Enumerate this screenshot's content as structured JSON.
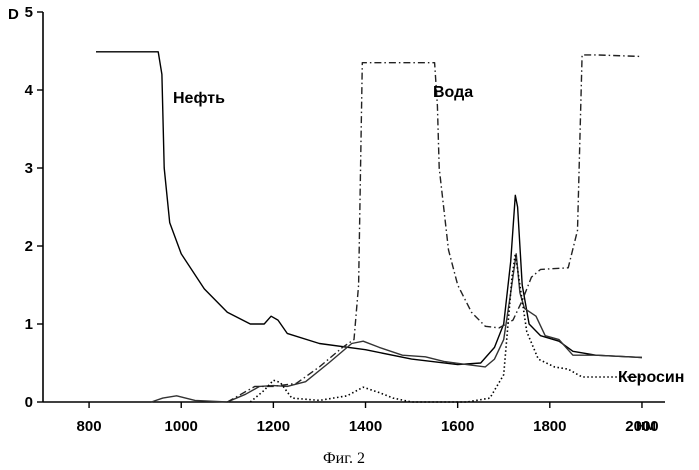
{
  "chart_data": {
    "type": "line",
    "ylabel": "D",
    "xlabel": "нм",
    "xlim": [
      700,
      2050
    ],
    "ylim": [
      0,
      5
    ],
    "xticks": [
      800,
      1000,
      1200,
      1400,
      1600,
      1800,
      2000
    ],
    "yticks": [
      0,
      1,
      2,
      3,
      4,
      5
    ],
    "grid": false,
    "legend": "none",
    "caption": "Фиг. 2",
    "series": [
      {
        "name": "Нефть",
        "style": "solid",
        "color": "#000000",
        "points": [
          [
            815,
            4.49
          ],
          [
            950,
            4.49
          ],
          [
            958,
            4.2
          ],
          [
            963,
            3.0
          ],
          [
            975,
            2.3
          ],
          [
            1000,
            1.9
          ],
          [
            1050,
            1.45
          ],
          [
            1100,
            1.15
          ],
          [
            1150,
            1.0
          ],
          [
            1180,
            1.0
          ],
          [
            1195,
            1.1
          ],
          [
            1210,
            1.05
          ],
          [
            1230,
            0.88
          ],
          [
            1300,
            0.75
          ],
          [
            1400,
            0.67
          ],
          [
            1500,
            0.55
          ],
          [
            1600,
            0.48
          ],
          [
            1650,
            0.5
          ],
          [
            1680,
            0.7
          ],
          [
            1700,
            1.0
          ],
          [
            1715,
            1.8
          ],
          [
            1725,
            2.65
          ],
          [
            1730,
            2.5
          ],
          [
            1740,
            1.5
          ],
          [
            1755,
            1.0
          ],
          [
            1780,
            0.85
          ],
          [
            1820,
            0.78
          ],
          [
            1850,
            0.65
          ],
          [
            1900,
            0.6
          ],
          [
            2000,
            0.57
          ]
        ]
      },
      {
        "name": "Вода",
        "style": "solid",
        "color": "#333333",
        "points": [
          [
            935,
            0.0
          ],
          [
            960,
            0.05
          ],
          [
            990,
            0.08
          ],
          [
            1030,
            0.02
          ],
          [
            1100,
            0.0
          ],
          [
            1140,
            0.1
          ],
          [
            1170,
            0.2
          ],
          [
            1200,
            0.21
          ],
          [
            1230,
            0.2
          ],
          [
            1270,
            0.26
          ],
          [
            1320,
            0.5
          ],
          [
            1370,
            0.75
          ],
          [
            1395,
            0.78
          ],
          [
            1430,
            0.7
          ],
          [
            1480,
            0.6
          ],
          [
            1530,
            0.58
          ],
          [
            1570,
            0.52
          ],
          [
            1620,
            0.48
          ],
          [
            1660,
            0.45
          ],
          [
            1680,
            0.55
          ],
          [
            1700,
            0.8
          ],
          [
            1715,
            1.4
          ],
          [
            1727,
            1.9
          ],
          [
            1735,
            1.4
          ],
          [
            1745,
            1.2
          ],
          [
            1770,
            1.1
          ],
          [
            1790,
            0.85
          ],
          [
            1820,
            0.8
          ],
          [
            1850,
            0.6
          ],
          [
            1900,
            0.6
          ],
          [
            2000,
            0.57
          ]
        ]
      },
      {
        "name": "",
        "style": "dashdot",
        "color": "#222222",
        "points": [
          [
            1100,
            0.0
          ],
          [
            1130,
            0.1
          ],
          [
            1160,
            0.2
          ],
          [
            1200,
            0.2
          ],
          [
            1250,
            0.24
          ],
          [
            1300,
            0.45
          ],
          [
            1350,
            0.7
          ],
          [
            1375,
            0.8
          ],
          [
            1385,
            1.5
          ],
          [
            1393,
            4.35
          ],
          [
            1550,
            4.35
          ],
          [
            1556,
            3.8
          ],
          [
            1560,
            3.0
          ],
          [
            1580,
            1.95
          ],
          [
            1600,
            1.5
          ],
          [
            1630,
            1.15
          ],
          [
            1660,
            0.97
          ],
          [
            1690,
            0.95
          ],
          [
            1720,
            1.05
          ],
          [
            1740,
            1.3
          ],
          [
            1760,
            1.6
          ],
          [
            1780,
            1.7
          ],
          [
            1840,
            1.72
          ],
          [
            1860,
            2.2
          ],
          [
            1870,
            4.45
          ],
          [
            1900,
            4.45
          ],
          [
            2000,
            4.43
          ]
        ]
      },
      {
        "name": "Керосин",
        "style": "dotted",
        "color": "#000000",
        "points": [
          [
            1150,
            0.0
          ],
          [
            1180,
            0.15
          ],
          [
            1200,
            0.28
          ],
          [
            1215,
            0.25
          ],
          [
            1240,
            0.05
          ],
          [
            1300,
            0.02
          ],
          [
            1360,
            0.08
          ],
          [
            1395,
            0.19
          ],
          [
            1430,
            0.12
          ],
          [
            1460,
            0.05
          ],
          [
            1500,
            0.0
          ],
          [
            1620,
            0.0
          ],
          [
            1670,
            0.05
          ],
          [
            1700,
            0.35
          ],
          [
            1718,
            1.6
          ],
          [
            1725,
            1.9
          ],
          [
            1735,
            1.5
          ],
          [
            1750,
            0.9
          ],
          [
            1775,
            0.55
          ],
          [
            1810,
            0.45
          ],
          [
            1840,
            0.42
          ],
          [
            1870,
            0.32
          ],
          [
            2000,
            0.32
          ]
        ]
      }
    ]
  }
}
